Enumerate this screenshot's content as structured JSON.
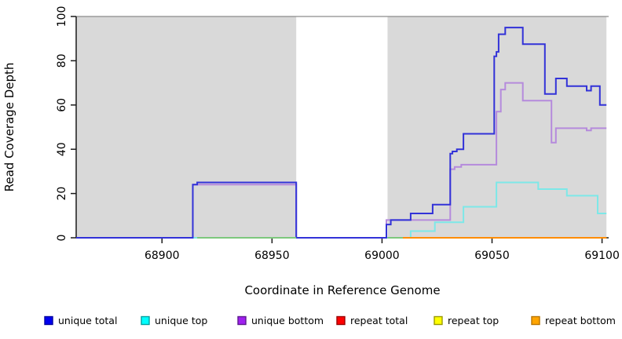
{
  "figure": {
    "kind": "read-coverage-step-plot"
  },
  "chart_data": {
    "type": "line",
    "subtype": "step",
    "title": "",
    "xlabel": "Coordinate in Reference Genome",
    "ylabel": "Read Coverage Depth",
    "xlim": [
      68861,
      69103
    ],
    "ylim": [
      0,
      100
    ],
    "x_ticks": [
      68900,
      68950,
      69000,
      69050,
      69100
    ],
    "y_ticks": [
      0,
      20,
      40,
      60,
      80,
      100
    ],
    "grid": false,
    "shaded_regions": [
      {
        "x0": 68861,
        "x1": 68961,
        "color": "#d9d9d9"
      },
      {
        "x0": 69002.5,
        "x1": 69102,
        "color": "#d9d9d9"
      }
    ],
    "series": [
      {
        "name": "repeat total",
        "color": "#cc0000",
        "points": [
          [
            68861,
            0
          ],
          [
            69102,
            0
          ]
        ]
      },
      {
        "name": "repeat top",
        "color": "#e8e800",
        "points": [
          [
            68861,
            0
          ],
          [
            69102,
            0
          ]
        ]
      },
      {
        "name": "unique bottom",
        "color": "#b58adc",
        "points": [
          [
            68861,
            0
          ],
          [
            68914,
            24
          ],
          [
            68961,
            0
          ],
          [
            69002,
            8
          ],
          [
            69031,
            31
          ],
          [
            69033,
            32
          ],
          [
            69036,
            33
          ],
          [
            69052,
            57
          ],
          [
            69054,
            67
          ],
          [
            69056,
            70
          ],
          [
            69064,
            62
          ],
          [
            69077,
            43
          ],
          [
            69079,
            49.5
          ],
          [
            69093,
            48.5
          ],
          [
            69095,
            49.5
          ],
          [
            69102,
            49.5
          ]
        ]
      },
      {
        "name": "unique top",
        "color": "#7de8e8",
        "points": [
          [
            68861,
            0
          ],
          [
            69013,
            3
          ],
          [
            69024,
            7
          ],
          [
            69037,
            14
          ],
          [
            69052,
            25
          ],
          [
            69071,
            22
          ],
          [
            69084,
            19
          ],
          [
            69098,
            11
          ],
          [
            69102,
            11
          ]
        ]
      },
      {
        "name": "unique total",
        "color": "#3232d8",
        "points": [
          [
            68861,
            0
          ],
          [
            68914,
            24
          ],
          [
            68916,
            25
          ],
          [
            68961,
            0
          ],
          [
            69002,
            6
          ],
          [
            69004,
            8
          ],
          [
            69013,
            11
          ],
          [
            69023,
            15
          ],
          [
            69031,
            38
          ],
          [
            69032,
            39
          ],
          [
            69034,
            40
          ],
          [
            69037,
            47
          ],
          [
            69051,
            82
          ],
          [
            69052,
            84
          ],
          [
            69053,
            92
          ],
          [
            69056,
            95
          ],
          [
            69064,
            87.5
          ],
          [
            69074,
            65
          ],
          [
            69079,
            72
          ],
          [
            69084,
            68.5
          ],
          [
            69093,
            66.5
          ],
          [
            69095,
            68.5
          ],
          [
            69099,
            60
          ],
          [
            69102,
            60
          ]
        ]
      },
      {
        "name": "repeat bottom",
        "color": "#ff8c00",
        "points": [
          [
            69009.5,
            0
          ],
          [
            69102,
            0
          ]
        ]
      }
    ],
    "zero_line_overlap_segments": [
      {
        "x0": 68916,
        "x1": 68961,
        "color": "#7dc87d"
      },
      {
        "x0": 69002.5,
        "x1": 69009.5,
        "color": "#7dc87d"
      }
    ]
  },
  "legend": {
    "items": [
      {
        "label": "unique total",
        "fill": "#0000f0",
        "border": "#0000a0"
      },
      {
        "label": "unique top",
        "fill": "#00ffff",
        "border": "#00a0a0"
      },
      {
        "label": "unique bottom",
        "fill": "#a020f0",
        "border": "#5d1a8e"
      },
      {
        "label": "repeat total",
        "fill": "#ff0000",
        "border": "#990000"
      },
      {
        "label": "repeat top",
        "fill": "#ffff00",
        "border": "#999900"
      },
      {
        "label": "repeat bottom",
        "fill": "#ffa500",
        "border": "#b87400"
      }
    ]
  }
}
